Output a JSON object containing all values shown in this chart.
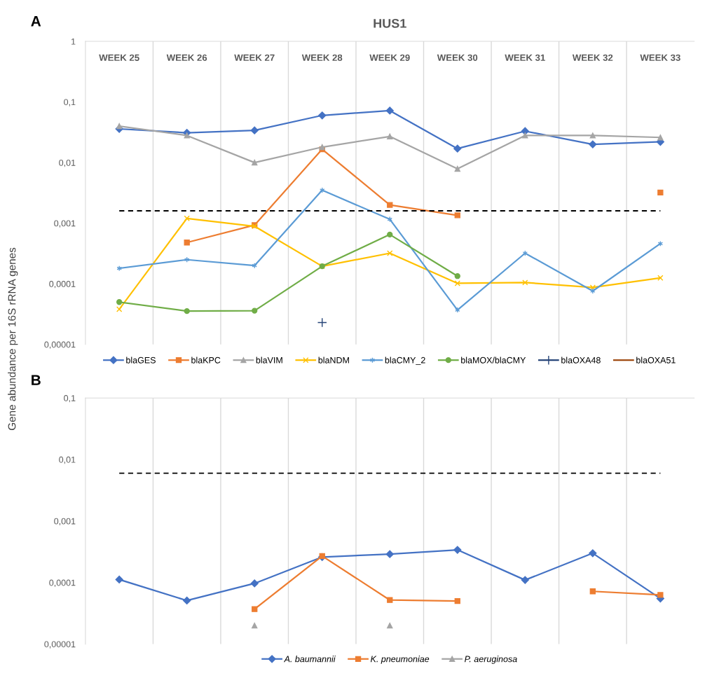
{
  "chart_data": [
    {
      "type": "line",
      "title": "HUS1",
      "ylabel": "Gene abundance per 16S rRNA genes",
      "annotations": [
        "A"
      ],
      "categories": [
        "WEEK 25",
        "WEEK 26",
        "WEEK 27",
        "WEEK 28",
        "WEEK 29",
        "WEEK 30",
        "WEEK 31",
        "WEEK 32",
        "WEEK 33"
      ],
      "log": "y",
      "ylim": [
        1e-05,
        1
      ],
      "yticks": [
        {
          "value": 1e-05,
          "label": "0,00001"
        },
        {
          "value": 0.0001,
          "label": "0,0001"
        },
        {
          "value": 0.001,
          "label": "0,001"
        },
        {
          "value": 0.01,
          "label": "0,01"
        },
        {
          "value": 0.1,
          "label": "0,1"
        },
        {
          "value": 1,
          "label": "1"
        }
      ],
      "grid": "x",
      "legend": "bottom",
      "ref_lines": [
        {
          "axis": "y",
          "value": 0.0016,
          "color": "#000000",
          "line_style": "dashed"
        }
      ],
      "series": [
        {
          "name": "blaGES",
          "color": "#4472c4",
          "marker": "diamond",
          "values": [
            0.036,
            0.031,
            0.034,
            0.06,
            0.072,
            0.017,
            0.033,
            0.02,
            0.022
          ]
        },
        {
          "name": "blaKPC",
          "color": "#ed7d31",
          "marker": "square",
          "values": [
            null,
            0.00048,
            0.00093,
            0.0166,
            0.002,
            0.00135,
            null,
            null,
            0.0032
          ]
        },
        {
          "name": "blaVIM",
          "color": "#a5a5a5",
          "marker": "triangle",
          "values": [
            0.04,
            0.028,
            0.01,
            0.018,
            0.027,
            0.0079,
            0.028,
            0.028,
            0.026
          ]
        },
        {
          "name": "blaNDM",
          "color": "#ffc000",
          "marker": "cross",
          "values": [
            3.8e-05,
            0.0012,
            0.00089,
            0.000195,
            0.00032,
            0.000102,
            0.000105,
            8.7e-05,
            0.000125
          ]
        },
        {
          "name": "blaCMY_2",
          "color": "#5b9bd5",
          "marker": "cross",
          "values": [
            0.00018,
            0.00025,
            0.0002,
            0.0035,
            0.00116,
            3.7e-05,
            0.00032,
            7.6e-05,
            0.00046
          ]
        },
        {
          "name": "blaMOX/blaCMY",
          "color": "#70ad47",
          "marker": "circle",
          "values": [
            5e-05,
            3.55e-05,
            3.6e-05,
            0.000195,
            0.00065,
            0.000134,
            null,
            null,
            null
          ]
        },
        {
          "name": "blaOXA48",
          "color": "#264478",
          "marker": "plus",
          "values": [
            null,
            null,
            null,
            2.3e-05,
            null,
            null,
            null,
            null,
            null
          ]
        },
        {
          "name": "blaOXA51",
          "color": "#9e480e",
          "marker": "none",
          "values": [
            null,
            null,
            null,
            null,
            null,
            null,
            null,
            null,
            null
          ]
        }
      ]
    },
    {
      "type": "line",
      "annotations": [
        "B"
      ],
      "categories": [
        null,
        null,
        null,
        null,
        null,
        null,
        null,
        null,
        null
      ],
      "tick_labels": "y",
      "log": "y",
      "ylim": [
        1e-05,
        0.1
      ],
      "yticks": [
        {
          "value": 1e-05,
          "label": "0,00001"
        },
        {
          "value": 0.0001,
          "label": "0,0001"
        },
        {
          "value": 0.001,
          "label": "0,001"
        },
        {
          "value": 0.01,
          "label": "0,01"
        },
        {
          "value": 0.1,
          "label": "0,1"
        }
      ],
      "grid": "x",
      "legend": "bottom",
      "ref_lines": [
        {
          "axis": "y",
          "value": 0.006,
          "color": "#000000",
          "line_style": "dashed"
        }
      ],
      "series": [
        {
          "name": "A. baumannii",
          "color": "#4472c4",
          "marker": "diamond",
          "values": [
            0.000112,
            5.1e-05,
            9.7e-05,
            0.00026,
            0.00029,
            0.00034,
            0.00011,
            0.0003,
            5.5e-05
          ]
        },
        {
          "name": "K. pneumoniae",
          "color": "#ed7d31",
          "marker": "square",
          "values": [
            null,
            null,
            3.7e-05,
            0.00027,
            5.2e-05,
            5e-05,
            null,
            7.2e-05,
            6.3e-05
          ]
        },
        {
          "name": "P. aeruginosa",
          "type": "scatter",
          "color": "#a5a5a5",
          "marker": "triangle",
          "values": [
            null,
            null,
            2e-05,
            null,
            2e-05,
            null,
            null,
            null,
            null
          ]
        }
      ]
    }
  ]
}
